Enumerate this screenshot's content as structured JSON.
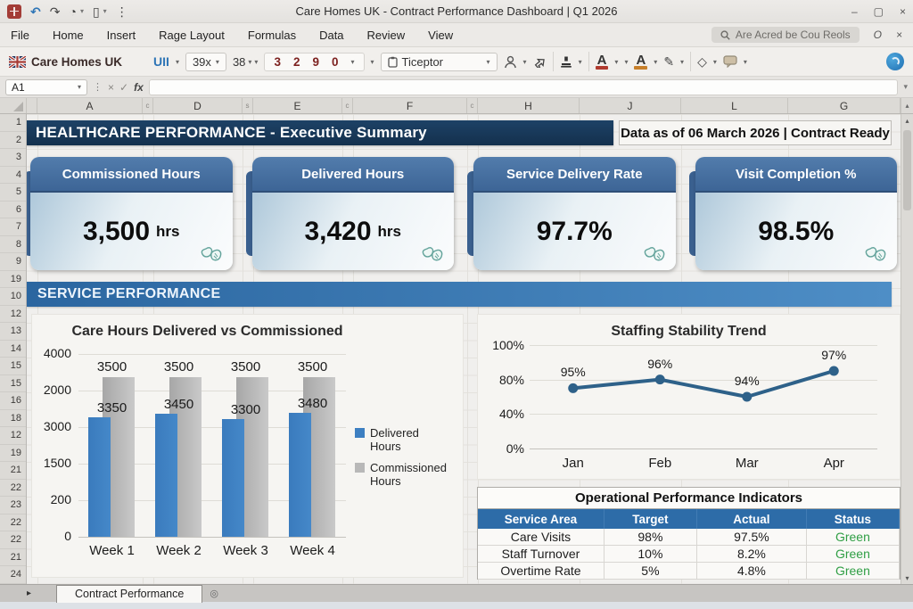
{
  "app": {
    "title": "Care Homes UK - Contract Performance Dashboard | Q1 2026"
  },
  "icons": {
    "undo": "↶",
    "redo": "↷",
    "history": "◔",
    "doc": "▯",
    "more": "⋮",
    "minimize": "–",
    "maximize": "▢",
    "close": "×",
    "caret": "▾",
    "pen": "✎",
    "diamond": "◇",
    "formula_cancel": "×",
    "formula_enter": "✓",
    "fx": "fx",
    "fb_dots": "⋮",
    "tab_arrow": "▸",
    "tab_circle": "◎",
    "scroll_up": "▴",
    "scroll_down": "▾"
  },
  "menubar": {
    "items": [
      "File",
      "Home",
      "Insert",
      "Rage Layout",
      "Formulas",
      "Data",
      "Review",
      "View"
    ],
    "search_text": "Are Acred be Cou Reols",
    "right_icons": [
      "O",
      "×"
    ]
  },
  "ribbon": {
    "brand": "Care Homes UK",
    "font_name": "UII",
    "font_size": "39x",
    "size_alt": "38",
    "number_buttons": [
      "3",
      "2",
      "9",
      "0"
    ],
    "name_combo": "Ticeptor",
    "accent_red": "#b03a2e",
    "accent_orange": "#c77f2a"
  },
  "formula_bar": {
    "name_box": "A1"
  },
  "grid": {
    "column_labels": [
      "",
      "A",
      "c",
      "D",
      "s",
      "E",
      "c",
      "F",
      "c",
      "H",
      "J",
      "L",
      "G"
    ],
    "row_labels": [
      "1",
      "2",
      "3",
      "4",
      "5",
      "6",
      "7",
      "8",
      "9",
      "19",
      "10",
      "12",
      "13",
      "14",
      "15",
      "15",
      "16",
      "18",
      "12",
      "19",
      "21",
      "22",
      "23",
      "22",
      "22",
      "21",
      "24"
    ]
  },
  "header": {
    "title": "HEALTHCARE PERFORMANCE - Executive Summary",
    "subtitle": "Data as of 06 March 2026 | Contract Ready"
  },
  "kpis": [
    {
      "label": "Commissioned Hours",
      "value": "3,500",
      "unit": "hrs"
    },
    {
      "label": "Delivered Hours",
      "value": "3,420",
      "unit": "hrs"
    },
    {
      "label": "Service Delivery Rate",
      "value": "97.7%",
      "unit": ""
    },
    {
      "label": "Visit Completion %",
      "value": "98.5%",
      "unit": ""
    }
  ],
  "section_title": "SERVICE PERFORMANCE",
  "chart_data": [
    {
      "type": "bar",
      "title": "Care Hours Delivered vs Commissioned",
      "categories": [
        "Week 1",
        "Week 2",
        "Week 3",
        "Week 4"
      ],
      "series": [
        {
          "name": "Delivered Hours",
          "color": "#3d7fc1",
          "values": [
            3350,
            3450,
            3300,
            3480
          ]
        },
        {
          "name": "Commissioned Hours",
          "color": "#b8b8b8",
          "values": [
            3500,
            3500,
            3500,
            3500
          ]
        }
      ],
      "y_tick_labels": [
        "4000",
        "2000",
        "3000",
        "1500",
        "200",
        "0"
      ],
      "ylim": [
        0,
        4000
      ],
      "grid": true,
      "legend_position": "right",
      "data_labels": true
    },
    {
      "type": "line",
      "title": "Staffing Stability Trend",
      "x": [
        "Jan",
        "Feb",
        "Mar",
        "Apr"
      ],
      "values": [
        95,
        96,
        94,
        97
      ],
      "point_labels": [
        "95%",
        "96%",
        "94%",
        "97%"
      ],
      "y_tick_labels": [
        "100%",
        "80%",
        "40%",
        "0%"
      ],
      "ylim": [
        0,
        100
      ],
      "grid": true,
      "line_color": "#2e6189"
    },
    {
      "type": "table",
      "title": "Operational Performance Indicators",
      "columns": [
        "Service Area",
        "Target",
        "Actual",
        "Status"
      ],
      "rows": [
        [
          "Care Visits",
          "98%",
          "97.5%",
          "Green"
        ],
        [
          "Staff Turnover",
          "10%",
          "8.2%",
          "Green"
        ],
        [
          "Overtime Rate",
          "5%",
          "4.8%",
          "Green"
        ]
      ],
      "header_bg": "#2d6ca8",
      "status_color": "#2f9e44"
    }
  ],
  "sheet_tab": "Contract Performance"
}
